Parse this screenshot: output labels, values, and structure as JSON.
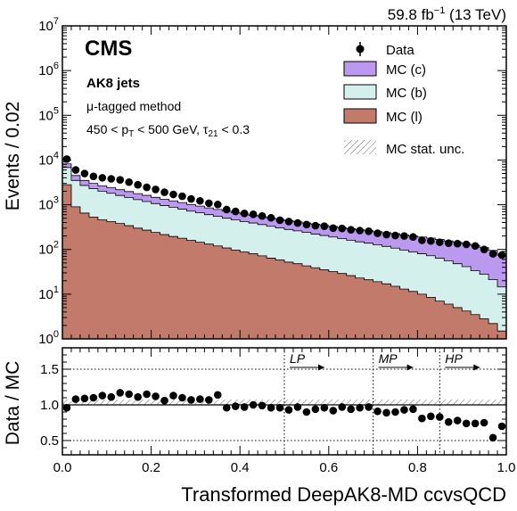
{
  "header": {
    "lumi": "59.8 fb",
    "lumi_exp": "−1",
    "energy": " (13 TeV)"
  },
  "labels": {
    "cms": "CMS",
    "jets": "AK8 jets",
    "method_mu": "μ",
    "method": "-tagged method",
    "cut_a": "450 < p",
    "cut_sub": "T",
    "cut_b": " < 500 GeV, τ",
    "cut_sub2": "21",
    "cut_c": " < 0.3"
  },
  "legend": {
    "data": "Data",
    "c": "MC (c)",
    "b": "MC (b)",
    "l": "MC (l)",
    "unc": "MC stat. unc."
  },
  "axes": {
    "ylabel_top": "Events / 0.02",
    "ylabel_bottom": "Data / MC",
    "xlabel": "Transformed DeepAK8-MD ccvsQCD"
  },
  "working_points": [
    {
      "label": "LP",
      "x": 0.5
    },
    {
      "label": "MP",
      "x": 0.7
    },
    {
      "label": "HP",
      "x": 0.85
    }
  ],
  "colors": {
    "mc_c": "#bb99ee",
    "mc_b": "#d4f0ec",
    "mc_l": "#c27a6a",
    "line": "#000000",
    "grid": "#000000"
  },
  "chart_data": [
    {
      "type": "area",
      "title": "",
      "xlabel": "",
      "ylabel": "Events / 0.02",
      "ylog": true,
      "ylim": [
        1,
        10000000
      ],
      "xlim": [
        0,
        1
      ],
      "bin_width": 0.02,
      "x": [
        0.01,
        0.03,
        0.05,
        0.07,
        0.09,
        0.11,
        0.13,
        0.15,
        0.17,
        0.19,
        0.21,
        0.23,
        0.25,
        0.27,
        0.29,
        0.31,
        0.33,
        0.35,
        0.37,
        0.39,
        0.41,
        0.43,
        0.45,
        0.47,
        0.49,
        0.51,
        0.53,
        0.55,
        0.57,
        0.59,
        0.61,
        0.63,
        0.65,
        0.67,
        0.69,
        0.71,
        0.73,
        0.75,
        0.77,
        0.79,
        0.81,
        0.83,
        0.85,
        0.87,
        0.89,
        0.91,
        0.93,
        0.95,
        0.97,
        0.99
      ],
      "series": [
        {
          "name": "MC (l)",
          "stack": true,
          "values": [
            2800,
            900,
            650,
            530,
            460,
            420,
            380,
            340,
            300,
            270,
            240,
            215,
            195,
            178,
            160,
            145,
            132,
            120,
            108,
            97,
            88,
            80,
            72,
            64,
            58,
            52,
            48,
            43,
            39,
            35,
            32,
            29,
            26,
            23,
            21,
            19,
            17,
            15,
            13,
            11.5,
            10,
            8.5,
            7,
            6,
            5,
            4.2,
            3.5,
            2.8,
            2.2,
            1.5
          ]
        },
        {
          "name": "MC (b)",
          "stack": true,
          "values": [
            4000,
            2600,
            2050,
            1750,
            1550,
            1380,
            1230,
            1110,
            1000,
            910,
            820,
            745,
            685,
            622,
            560,
            515,
            468,
            430,
            392,
            363,
            332,
            310,
            288,
            266,
            247,
            228,
            212,
            197,
            182,
            170,
            158,
            146,
            135,
            125,
            117,
            108,
            100,
            92,
            84,
            76,
            70,
            64,
            57,
            50,
            43,
            37,
            30,
            25,
            19,
            13
          ]
        },
        {
          "name": "MC (c)",
          "stack": true,
          "values": [
            1400,
            1000,
            800,
            720,
            640,
            600,
            560,
            520,
            470,
            440,
            400,
            370,
            340,
            320,
            290,
            270,
            250,
            235,
            220,
            210,
            200,
            190,
            180,
            175,
            165,
            160,
            155,
            150,
            145,
            140,
            135,
            133,
            130,
            127,
            125,
            123,
            120,
            118,
            115,
            112,
            110,
            107,
            103,
            99,
            96,
            92,
            90,
            82,
            74,
            60
          ]
        },
        {
          "name": "Data",
          "values": [
            10500,
            6000,
            5000,
            4300,
            4000,
            3800,
            3600,
            3200,
            2800,
            2450,
            2200,
            1900,
            1700,
            1550,
            1350,
            1220,
            1080,
            1010,
            780,
            710,
            640,
            610,
            560,
            510,
            450,
            420,
            390,
            360,
            340,
            330,
            300,
            295,
            275,
            265,
            255,
            230,
            215,
            205,
            200,
            190,
            160,
            155,
            145,
            138,
            135,
            130,
            120,
            100,
            80,
            75
          ]
        }
      ],
      "legend_position": "top-right"
    },
    {
      "type": "scatter",
      "title": "",
      "xlabel": "Transformed DeepAK8-MD ccvsQCD",
      "ylabel": "Data / MC",
      "xlim": [
        0,
        1
      ],
      "ylim": [
        0.3,
        1.8
      ],
      "reference_line": 1.0,
      "grid_y": [
        0.5,
        1.0,
        1.5
      ],
      "x": [
        0.01,
        0.03,
        0.05,
        0.07,
        0.09,
        0.11,
        0.13,
        0.15,
        0.17,
        0.19,
        0.21,
        0.23,
        0.25,
        0.27,
        0.29,
        0.31,
        0.33,
        0.35,
        0.37,
        0.39,
        0.41,
        0.43,
        0.45,
        0.47,
        0.49,
        0.51,
        0.53,
        0.55,
        0.57,
        0.59,
        0.61,
        0.63,
        0.65,
        0.67,
        0.69,
        0.71,
        0.73,
        0.75,
        0.77,
        0.79,
        0.81,
        0.83,
        0.85,
        0.87,
        0.89,
        0.91,
        0.93,
        0.95,
        0.97,
        0.99
      ],
      "y": [
        0.96,
        1.08,
        1.09,
        1.1,
        1.13,
        1.11,
        1.17,
        1.15,
        1.11,
        1.15,
        1.12,
        1.06,
        1.13,
        1.1,
        1.07,
        1.08,
        1.07,
        1.14,
        0.96,
        0.98,
        0.97,
        1.0,
        0.99,
        0.96,
        0.96,
        0.93,
        0.97,
        0.9,
        0.94,
        0.96,
        0.92,
        0.97,
        0.94,
        0.96,
        0.97,
        0.91,
        0.89,
        0.9,
        0.93,
        0.94,
        0.81,
        0.84,
        0.83,
        0.76,
        0.78,
        0.74,
        0.74,
        0.75,
        0.54,
        0.7
      ],
      "uncertainty_band": "MC stat. unc."
    }
  ]
}
